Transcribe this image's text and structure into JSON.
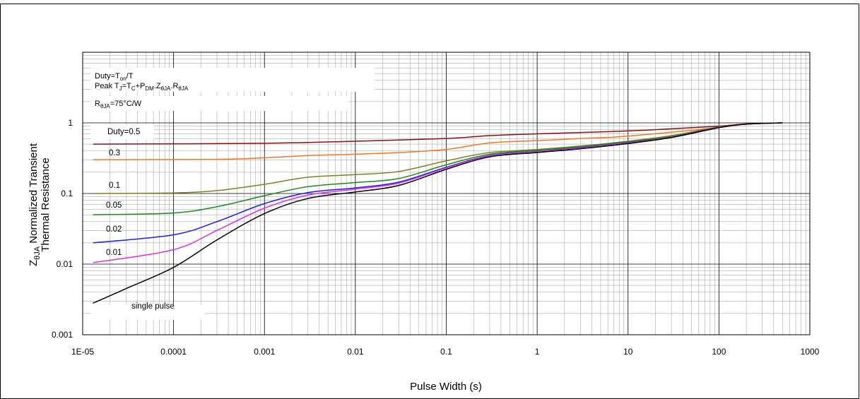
{
  "chart_data": {
    "type": "line",
    "x_scale": "log",
    "y_scale": "log",
    "xlim": [
      1e-05,
      1000
    ],
    "ylim": [
      0.001,
      10
    ],
    "grid": true,
    "xlabel": "Pulse Width (s)",
    "ylabel": {
      "line1_pre": "Z",
      "line1_sub": "θJA",
      "line1_post": "Normalized Transient",
      "line2": "Thermal Resistance"
    },
    "x_ticks": [
      {
        "value": 1e-05,
        "label": "1E-05"
      },
      {
        "value": 0.0001,
        "label": "0.0001"
      },
      {
        "value": 0.001,
        "label": "0.001"
      },
      {
        "value": 0.01,
        "label": "0.01"
      },
      {
        "value": 0.1,
        "label": "0.1"
      },
      {
        "value": 1,
        "label": "1"
      },
      {
        "value": 10,
        "label": "10"
      },
      {
        "value": 100,
        "label": "100"
      },
      {
        "value": 1000,
        "label": "1000"
      }
    ],
    "y_ticks": [
      {
        "value": 0.001,
        "label": "0.001"
      },
      {
        "value": 0.01,
        "label": "0.01"
      },
      {
        "value": 0.1,
        "label": "0.1"
      },
      {
        "value": 1,
        "label": "1"
      }
    ],
    "annotations": {
      "duty_formula": "Duty=Ton/T",
      "peak_formula": "Peak TJ=TC+PDM.ZθJA.RθJA",
      "rtheta": "RθJA=75°C/W"
    },
    "series": [
      {
        "name": "Duty=0.5",
        "color": "#8b1010",
        "x": [
          1.3e-05,
          0.001,
          0.01,
          0.1,
          0.3,
          1,
          10,
          100,
          200,
          500
        ],
        "y": [
          0.5,
          0.515,
          0.55,
          0.6,
          0.66,
          0.7,
          0.77,
          0.9,
          0.97,
          1.0
        ]
      },
      {
        "name": "0.3",
        "color": "#f07820",
        "x": [
          1.3e-05,
          0.0003,
          0.001,
          0.003,
          0.01,
          0.03,
          0.1,
          0.3,
          1,
          3,
          10,
          100,
          200,
          500
        ],
        "y": [
          0.3,
          0.305,
          0.32,
          0.345,
          0.36,
          0.38,
          0.42,
          0.52,
          0.56,
          0.6,
          0.65,
          0.86,
          0.96,
          1.0
        ]
      },
      {
        "name": "0.1",
        "color": "#808020",
        "x": [
          1.3e-05,
          0.0001,
          0.0003,
          0.001,
          0.003,
          0.01,
          0.03,
          0.1,
          0.3,
          1,
          3,
          10,
          30,
          100,
          200,
          500
        ],
        "y": [
          0.1,
          0.102,
          0.11,
          0.135,
          0.17,
          0.185,
          0.205,
          0.29,
          0.38,
          0.42,
          0.47,
          0.55,
          0.66,
          0.88,
          0.96,
          1.0
        ]
      },
      {
        "name": "0.05",
        "color": "#1a8a1a",
        "x": [
          1.3e-05,
          0.0001,
          0.0003,
          0.001,
          0.003,
          0.01,
          0.03,
          0.1,
          0.3,
          1,
          3,
          10,
          30,
          100,
          200,
          500
        ],
        "y": [
          0.05,
          0.053,
          0.065,
          0.093,
          0.125,
          0.143,
          0.163,
          0.255,
          0.36,
          0.41,
          0.46,
          0.54,
          0.64,
          0.87,
          0.96,
          1.0
        ]
      },
      {
        "name": "0.02",
        "color": "#1e1ee0",
        "x": [
          1.3e-05,
          0.0001,
          0.0003,
          0.001,
          0.003,
          0.01,
          0.03,
          0.1,
          0.3,
          1,
          3,
          10,
          30,
          100,
          200,
          500
        ],
        "y": [
          0.02,
          0.026,
          0.04,
          0.072,
          0.103,
          0.12,
          0.145,
          0.235,
          0.345,
          0.395,
          0.445,
          0.525,
          0.63,
          0.865,
          0.96,
          1.0
        ]
      },
      {
        "name": "0.01",
        "color": "#e030e0",
        "x": [
          1.3e-05,
          0.0001,
          0.0003,
          0.001,
          0.003,
          0.01,
          0.03,
          0.1,
          0.3,
          1,
          3,
          10,
          30,
          100,
          200,
          500
        ],
        "y": [
          0.0105,
          0.016,
          0.03,
          0.062,
          0.095,
          0.115,
          0.14,
          0.23,
          0.34,
          0.39,
          0.44,
          0.52,
          0.625,
          0.86,
          0.96,
          1.0
        ]
      },
      {
        "name": "single pulse",
        "color": "#000000",
        "x": [
          1.3e-05,
          3e-05,
          0.0001,
          0.0003,
          0.001,
          0.003,
          0.01,
          0.03,
          0.1,
          0.3,
          1,
          3,
          10,
          30,
          100,
          200,
          500
        ],
        "y": [
          0.0028,
          0.0045,
          0.009,
          0.022,
          0.052,
          0.085,
          0.105,
          0.13,
          0.22,
          0.33,
          0.38,
          0.43,
          0.51,
          0.62,
          0.855,
          0.96,
          1.0
        ]
      }
    ]
  }
}
